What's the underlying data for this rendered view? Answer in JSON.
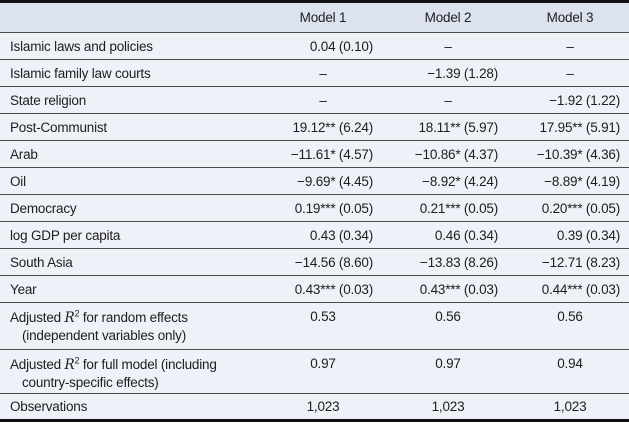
{
  "colors": {
    "header_bg": "#dce2ee",
    "body_bg": "#eef1f8",
    "thin_rule": "#4b4b4b",
    "thick_rule": "#111111",
    "text": "#1d1d1d"
  },
  "table": {
    "columns": [
      "Model 1",
      "Model 2",
      "Model 3"
    ],
    "rows": [
      {
        "label": "Islamic laws and policies",
        "m1": "0.04 (0.10)",
        "m2": "–",
        "m3": "–"
      },
      {
        "label": "Islamic family law courts",
        "m1": "–",
        "m2": "−1.39 (1.28)",
        "m3": "–"
      },
      {
        "label": "State religion",
        "m1": "–",
        "m2": "–",
        "m3": "−1.92 (1.22)"
      },
      {
        "label": "Post-Communist",
        "m1": "19.12** (6.24)",
        "m2": "18.11** (5.97)",
        "m3": "17.95** (5.91)"
      },
      {
        "label": "Arab",
        "m1": "−11.61* (4.57)",
        "m2": "−10.86* (4.37)",
        "m3": "−10.39* (4.36)"
      },
      {
        "label": "Oil",
        "m1": "−9.69* (4.45)",
        "m2": "−8.92* (4.24)",
        "m3": "−8.89* (4.19)"
      },
      {
        "label": "Democracy",
        "m1": "0.19*** (0.05)",
        "m2": "0.21*** (0.05)",
        "m3": "0.20*** (0.05)"
      },
      {
        "label": "log GDP per capita",
        "m1": "0.43 (0.34)",
        "m2": "0.46 (0.34)",
        "m3": "0.39 (0.34)"
      },
      {
        "label": "South Asia",
        "m1": "−14.56 (8.60)",
        "m2": "−13.83 (8.26)",
        "m3": "−12.71 (8.23)"
      },
      {
        "label": "Year",
        "m1": "0.43*** (0.03)",
        "m2": "0.43*** (0.03)",
        "m3": "0.44*** (0.03)"
      },
      {
        "label_pre": "Adjusted ",
        "label_r": "R",
        "label_sup": "2",
        "label_post": " for random effects",
        "label_line2": "(independent variables only)",
        "m1": "0.53",
        "m2": "0.56",
        "m3": "0.56"
      },
      {
        "label_pre": "Adjusted ",
        "label_r": "R",
        "label_sup": "2",
        "label_post": " for full model (including",
        "label_line2": "country-specific effects)",
        "m1": "0.97",
        "m2": "0.97",
        "m3": "0.94"
      },
      {
        "label": "Observations",
        "m1": "1,023",
        "m2": "1,023",
        "m3": "1,023"
      }
    ]
  }
}
